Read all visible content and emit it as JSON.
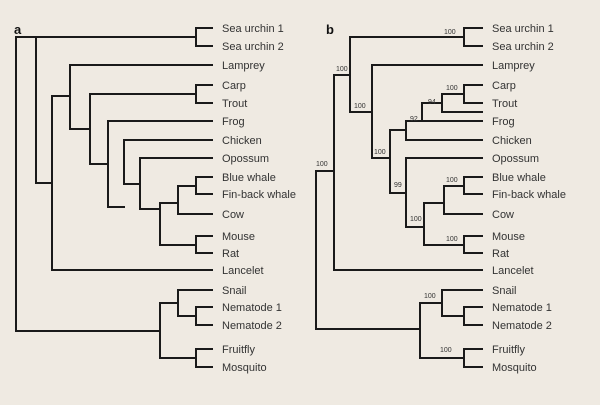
{
  "panel_a": {
    "label": "a",
    "leaves": [
      "Sea urchin 1",
      "Sea urchin 2",
      "Lamprey",
      "Carp",
      "Trout",
      "Frog",
      "Chicken",
      "Opossum",
      "Blue whale",
      "Fin-back whale",
      "Cow",
      "Mouse",
      "Rat",
      "Lancelet",
      "Snail",
      "Nematode 1",
      "Nematode 2",
      "Fruitfly",
      "Mosquito"
    ]
  },
  "panel_b": {
    "label": "b",
    "leaves": [
      "Sea urchin 1",
      "Sea urchin 2",
      "Lamprey",
      "Carp",
      "Trout",
      "Frog",
      "Chicken",
      "Opossum",
      "Blue whale",
      "Fin-back whale",
      "Cow",
      "Mouse",
      "Rat",
      "Lancelet",
      "Snail",
      "Nematode 1",
      "Nematode 2",
      "Fruitfly",
      "Mosquito"
    ],
    "support_values": [
      "100",
      "100",
      "100",
      "94",
      "92",
      "100",
      "99",
      "100",
      "100",
      "100",
      "100",
      "100",
      "100",
      "100"
    ]
  }
}
